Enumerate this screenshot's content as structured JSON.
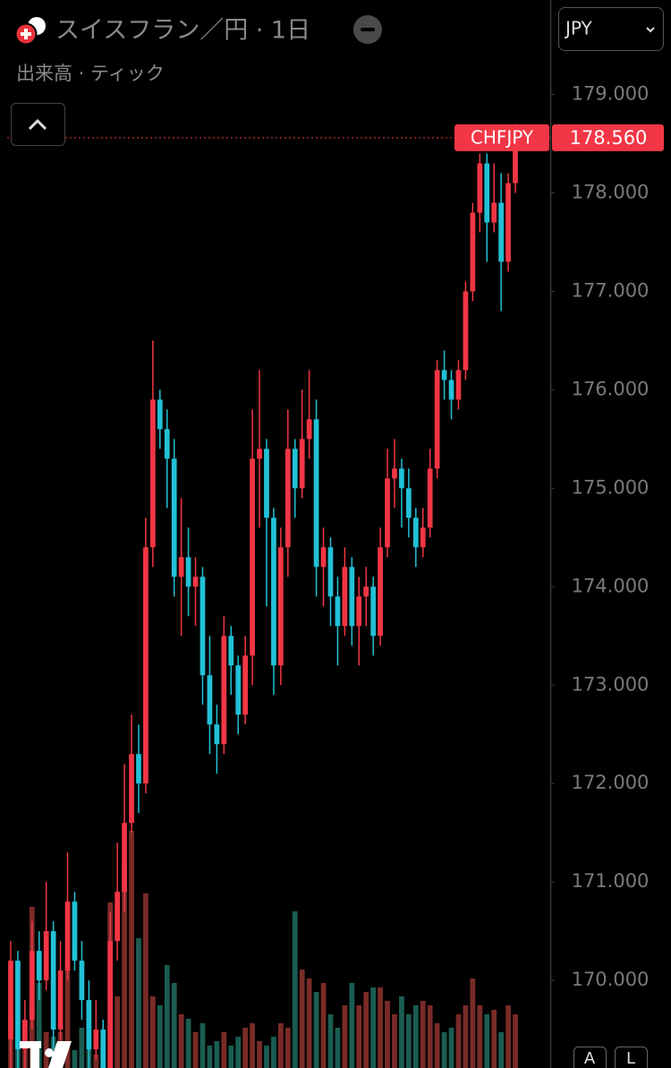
{
  "header": {
    "title": "スイスフラン／円 · 1日",
    "subtitle": "出来高 · ティック",
    "currency_button": "JPY"
  },
  "chart_data": {
    "type": "candlestick",
    "symbol": "CHFJPY",
    "last_price": {
      "value": 178.56,
      "label": "178.560"
    },
    "up_color": "#f23645",
    "down_color": "#22c1d6",
    "volume_up_color": "#7a2b27",
    "volume_down_color": "#1b5d52",
    "ylim": [
      169.11,
      179.96
    ],
    "yticks": [
      {
        "value": 170,
        "label": "170.000"
      },
      {
        "value": 171,
        "label": "171.000"
      },
      {
        "value": 172,
        "label": "172.000"
      },
      {
        "value": 173,
        "label": "173.000"
      },
      {
        "value": 174,
        "label": "174.000"
      },
      {
        "value": 175,
        "label": "175.000"
      },
      {
        "value": 176,
        "label": "176.000"
      },
      {
        "value": 177,
        "label": "177.000"
      },
      {
        "value": 178,
        "label": "178.000"
      },
      {
        "value": 179,
        "label": "179.000"
      }
    ],
    "open": [
      169.4,
      170.2,
      169.3,
      169.6,
      170.3,
      170.0,
      170.5,
      169.5,
      170.1,
      170.8,
      170.2,
      169.8,
      169.3,
      169.5,
      169.1,
      170.4,
      170.9,
      171.6,
      172.3,
      172.0,
      174.4,
      175.9,
      175.6,
      175.3,
      174.1,
      174.3,
      174.0,
      174.1,
      173.1,
      172.6,
      172.4,
      173.5,
      173.2,
      172.7,
      173.3,
      175.3,
      175.4,
      174.7,
      173.2,
      174.4,
      175.4,
      175.0,
      175.5,
      175.7,
      174.2,
      174.4,
      173.9,
      173.6,
      174.2,
      173.6,
      173.9,
      174.0,
      173.5,
      174.4,
      175.1,
      175.2,
      175.0,
      174.7,
      174.4,
      174.6,
      175.2,
      176.2,
      176.1,
      175.9,
      176.2,
      177.0,
      177.8,
      178.3,
      177.7,
      177.9,
      177.3,
      178.1
    ],
    "high": [
      170.4,
      170.3,
      169.8,
      170.6,
      170.5,
      171.0,
      170.6,
      170.4,
      171.3,
      170.9,
      170.4,
      170.0,
      169.8,
      169.6,
      170.7,
      171.4,
      172.2,
      172.7,
      172.6,
      174.7,
      176.5,
      176.0,
      175.8,
      175.5,
      174.9,
      174.6,
      174.3,
      174.2,
      173.5,
      172.8,
      173.7,
      173.6,
      173.3,
      173.5,
      175.8,
      176.2,
      175.5,
      174.8,
      174.6,
      175.8,
      175.5,
      176.0,
      176.2,
      175.9,
      174.6,
      174.5,
      174.1,
      174.4,
      174.3,
      174.1,
      174.2,
      174.1,
      174.6,
      175.4,
      175.5,
      175.3,
      175.2,
      174.8,
      174.8,
      175.4,
      176.3,
      176.4,
      176.2,
      176.3,
      177.1,
      177.9,
      178.4,
      178.4,
      178.3,
      178.2,
      178.2,
      178.7
    ],
    "low": [
      169.0,
      169.1,
      169.1,
      169.5,
      169.8,
      169.9,
      169.3,
      169.4,
      170.0,
      170.1,
      169.6,
      169.1,
      169.2,
      169.0,
      169.0,
      170.2,
      170.7,
      171.5,
      171.7,
      171.9,
      174.2,
      175.4,
      174.8,
      173.9,
      173.5,
      173.7,
      173.6,
      172.8,
      172.3,
      172.1,
      172.3,
      172.9,
      172.5,
      172.6,
      173.0,
      174.6,
      173.8,
      172.9,
      173.0,
      174.1,
      174.7,
      174.9,
      175.3,
      173.9,
      173.8,
      173.6,
      173.2,
      173.5,
      173.4,
      173.2,
      173.6,
      173.3,
      173.4,
      174.3,
      174.8,
      174.6,
      174.5,
      174.2,
      174.3,
      174.5,
      175.1,
      175.9,
      175.7,
      175.8,
      176.1,
      176.9,
      177.6,
      177.3,
      177.6,
      176.8,
      177.2,
      178.0
    ],
    "close": [
      170.2,
      169.3,
      169.6,
      170.3,
      170.0,
      170.5,
      169.5,
      170.1,
      170.8,
      170.2,
      169.8,
      169.3,
      169.5,
      169.1,
      170.4,
      170.9,
      171.6,
      172.3,
      172.0,
      174.4,
      175.9,
      175.6,
      175.3,
      174.1,
      174.3,
      174.0,
      174.1,
      173.1,
      172.6,
      172.4,
      173.5,
      173.2,
      172.7,
      173.3,
      175.3,
      175.4,
      174.7,
      173.2,
      174.4,
      175.4,
      175.0,
      175.5,
      175.7,
      174.2,
      174.4,
      173.9,
      173.6,
      174.2,
      173.6,
      173.9,
      174.0,
      173.5,
      174.4,
      175.1,
      175.2,
      175.0,
      174.7,
      174.4,
      174.6,
      175.2,
      176.2,
      176.1,
      175.9,
      176.2,
      177.0,
      177.8,
      178.3,
      177.7,
      177.9,
      177.3,
      178.1,
      178.56
    ],
    "volume": [
      60,
      30,
      25,
      180,
      95,
      40,
      35,
      40,
      120,
      20,
      45,
      30,
      15,
      25,
      185,
      80,
      230,
      265,
      145,
      195,
      80,
      70,
      115,
      95,
      60,
      55,
      40,
      50,
      25,
      30,
      40,
      25,
      35,
      45,
      50,
      30,
      25,
      35,
      50,
      45,
      175,
      110,
      100,
      85,
      95,
      60,
      45,
      70,
      95,
      70,
      85,
      90,
      90,
      75,
      60,
      80,
      60,
      70,
      75,
      70,
      50,
      40,
      45,
      60,
      70,
      100,
      70,
      60,
      65,
      40,
      70,
      60
    ],
    "axis_buttons": [
      "A",
      "L"
    ]
  }
}
